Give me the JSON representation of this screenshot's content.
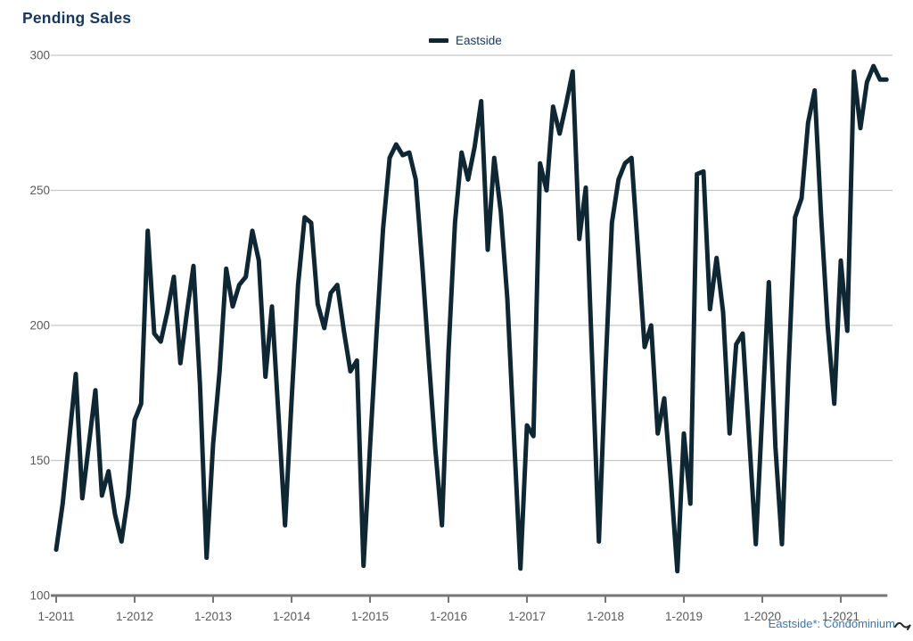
{
  "header": {
    "title": "Pending Sales"
  },
  "legend": {
    "label": "Eastside"
  },
  "footnote": {
    "text": "Eastside*: Condominium"
  },
  "colors": {
    "line": "#0e2733",
    "title_text": "#17375e",
    "legend_text": "#17375e",
    "axis_text": "#595959",
    "gridline": "#c7c7c7",
    "axis_line": "#767676",
    "footnote_text": "#3e75b0",
    "cursor": "#2a2a2a"
  },
  "chart_data": {
    "type": "line",
    "title": "Pending Sales",
    "xlabel": "",
    "ylabel": "",
    "ylim": [
      100,
      300
    ],
    "y_ticks": [
      100,
      150,
      200,
      250,
      300
    ],
    "grid": "horizontal-only",
    "legend_position": "top-center",
    "x_tick_labels": [
      "1-2011",
      "1-2012",
      "1-2013",
      "1-2014",
      "1-2015",
      "1-2016",
      "1-2017",
      "1-2018",
      "1-2019",
      "1-2020",
      "1-2021"
    ],
    "x_tick_interval_months": 12,
    "series": [
      {
        "name": "Eastside",
        "color": "#0e2733",
        "start_month": "2011-01",
        "end_month": "2021-08",
        "frequency": "monthly",
        "values": [
          117,
          134,
          158,
          182,
          136,
          156,
          176,
          137,
          146,
          130,
          120,
          137,
          165,
          171,
          235,
          197,
          194,
          205,
          218,
          186,
          205,
          222,
          178,
          114,
          156,
          183,
          221,
          207,
          215,
          218,
          235,
          224,
          181,
          207,
          167,
          126,
          172,
          215,
          240,
          238,
          208,
          199,
          212,
          215,
          198,
          183,
          187,
          111,
          155,
          197,
          236,
          262,
          267,
          263,
          264,
          254,
          222,
          187,
          154,
          126,
          190,
          238,
          264,
          254,
          266,
          283,
          228,
          262,
          242,
          210,
          160,
          110,
          163,
          159,
          260,
          250,
          281,
          271,
          282,
          294,
          232,
          251,
          186,
          120,
          183,
          238,
          254,
          260,
          262,
          227,
          192,
          200,
          160,
          173,
          143,
          109,
          160,
          134,
          256,
          257,
          206,
          225,
          205,
          160,
          193,
          197,
          158,
          119,
          168,
          216,
          155,
          119,
          183,
          240,
          247,
          275,
          287,
          240,
          200,
          171,
          224,
          198,
          294,
          273,
          290,
          296,
          291,
          291
        ]
      }
    ]
  }
}
